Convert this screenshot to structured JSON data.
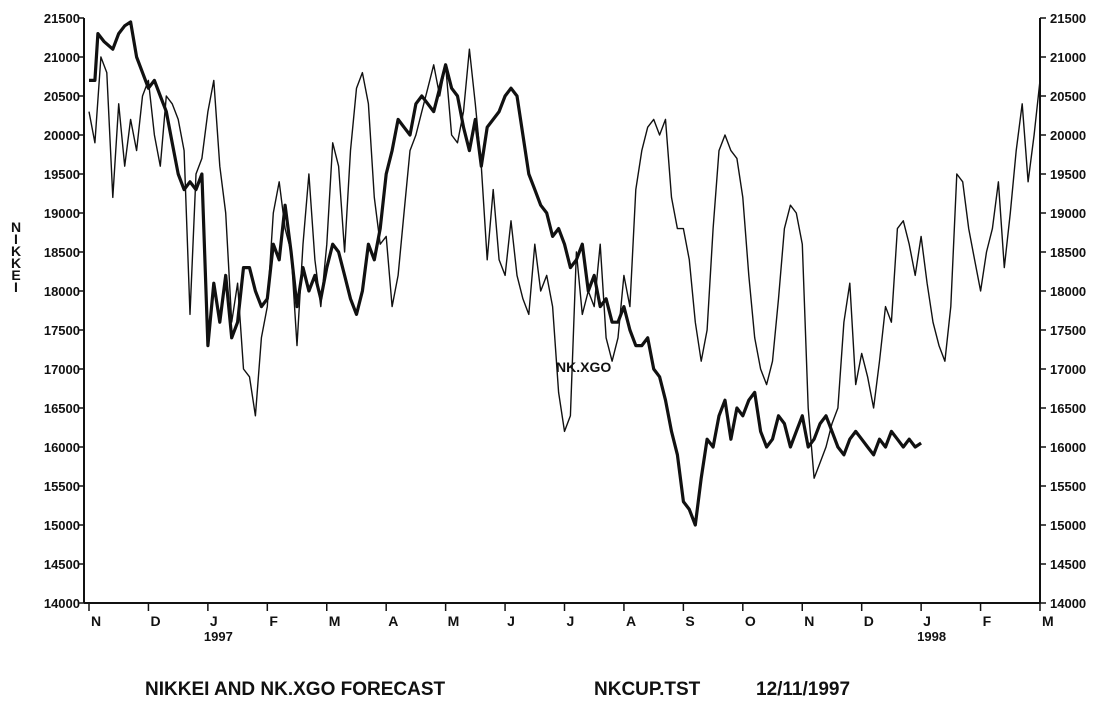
{
  "chart_data": {
    "type": "line",
    "ylabel": "NIKKEI",
    "ylim": [
      14000,
      21500
    ],
    "yticks": [
      "14000",
      "14500",
      "15000",
      "15500",
      "16000",
      "16500",
      "17000",
      "17500",
      "18000",
      "18500",
      "19000",
      "19500",
      "20000",
      "20500",
      "21000",
      "21500"
    ],
    "months": [
      "N",
      "D",
      "J",
      "F",
      "M",
      "A",
      "M",
      "J",
      "J",
      "A",
      "S",
      "O",
      "N",
      "D",
      "J",
      "F",
      "M"
    ],
    "years": [
      {
        "label": "1997",
        "month_index": 2
      },
      {
        "label": "1998",
        "month_index": 14
      }
    ],
    "annotation": "NK.XGO",
    "series": [
      {
        "name": "NIKKEI",
        "style": "thick",
        "x_month": [
          0,
          0.1,
          0.15,
          0.25,
          0.4,
          0.5,
          0.6,
          0.7,
          0.8,
          0.9,
          1,
          1.1,
          1.2,
          1.3,
          1.4,
          1.5,
          1.6,
          1.7,
          1.8,
          1.9,
          2,
          2.1,
          2.2,
          2.3,
          2.4,
          2.5,
          2.6,
          2.7,
          2.8,
          2.9,
          3,
          3.1,
          3.2,
          3.3,
          3.4,
          3.5,
          3.6,
          3.7,
          3.8,
          3.9,
          4,
          4.1,
          4.2,
          4.3,
          4.4,
          4.5,
          4.6,
          4.7,
          4.8,
          4.9,
          5,
          5.1,
          5.2,
          5.3,
          5.4,
          5.5,
          5.6,
          5.7,
          5.8,
          5.9,
          6,
          6.1,
          6.2,
          6.3,
          6.4,
          6.5,
          6.6,
          6.7,
          6.8,
          6.9,
          7,
          7.1,
          7.2,
          7.3,
          7.4,
          7.5,
          7.6,
          7.7,
          7.8,
          7.9,
          8,
          8.1,
          8.2,
          8.3,
          8.4,
          8.5,
          8.6,
          8.7,
          8.8,
          8.9,
          9,
          9.1,
          9.2,
          9.3,
          9.4,
          9.5,
          9.6,
          9.7,
          9.8,
          9.9,
          10,
          10.1,
          10.2,
          10.3,
          10.4,
          10.5,
          10.6,
          10.7,
          10.8,
          10.9,
          11,
          11.1,
          11.2,
          11.3,
          11.4,
          11.5,
          11.6,
          11.7,
          11.8,
          11.9,
          12,
          12.1,
          12.2,
          12.3,
          12.4,
          12.5,
          12.6,
          12.7,
          12.8,
          12.9,
          13,
          13.1,
          13.2,
          13.3,
          13.4,
          13.5,
          13.6,
          13.7,
          13.8,
          13.9,
          14
        ],
        "y": [
          20700,
          20700,
          21300,
          21200,
          21100,
          21300,
          21400,
          21450,
          21000,
          20800,
          20600,
          20700,
          20500,
          20300,
          19900,
          19500,
          19300,
          19400,
          19300,
          19500,
          17300,
          18100,
          17600,
          18200,
          17400,
          17600,
          18300,
          18300,
          18000,
          17800,
          17900,
          18600,
          18400,
          19100,
          18500,
          17800,
          18300,
          18000,
          18200,
          17900,
          18300,
          18600,
          18500,
          18200,
          17900,
          17700,
          18000,
          18600,
          18400,
          18800,
          19500,
          19800,
          20200,
          20100,
          20000,
          20400,
          20500,
          20400,
          20300,
          20600,
          20900,
          20600,
          20500,
          20100,
          19800,
          20200,
          19600,
          20100,
          20200,
          20300,
          20500,
          20600,
          20500,
          20000,
          19500,
          19300,
          19100,
          19000,
          18700,
          18800,
          18600,
          18300,
          18400,
          18600,
          18000,
          18200,
          17800,
          17900,
          17600,
          17600,
          17800,
          17500,
          17300,
          17300,
          17400,
          17000,
          16900,
          16600,
          16200,
          15900,
          15300,
          15200,
          15000,
          15600,
          16100,
          16000,
          16400,
          16600,
          16100,
          16500,
          16400,
          16600,
          16700,
          16200,
          16000,
          16100,
          16400,
          16300,
          16000,
          16200,
          16400,
          16000,
          16100,
          16300,
          16400,
          16200,
          16000,
          15900,
          16100,
          16200,
          16100,
          16000,
          15900,
          16100,
          16000,
          16200,
          16100,
          16000,
          16100,
          16000,
          16050
        ]
      },
      {
        "name": "NK.XGO",
        "style": "thin",
        "x_month": [
          0,
          0.1,
          0.2,
          0.3,
          0.4,
          0.5,
          0.6,
          0.7,
          0.8,
          0.9,
          1,
          1.1,
          1.2,
          1.3,
          1.4,
          1.5,
          1.6,
          1.7,
          1.8,
          1.9,
          2,
          2.1,
          2.2,
          2.3,
          2.4,
          2.5,
          2.6,
          2.7,
          2.8,
          2.9,
          3,
          3.1,
          3.2,
          3.3,
          3.4,
          3.5,
          3.6,
          3.7,
          3.8,
          3.9,
          4,
          4.1,
          4.2,
          4.3,
          4.4,
          4.5,
          4.6,
          4.7,
          4.8,
          4.9,
          5,
          5.1,
          5.2,
          5.3,
          5.4,
          5.5,
          5.6,
          5.7,
          5.8,
          5.9,
          6,
          6.1,
          6.2,
          6.3,
          6.4,
          6.5,
          6.6,
          6.7,
          6.8,
          6.9,
          7,
          7.1,
          7.2,
          7.3,
          7.4,
          7.5,
          7.6,
          7.7,
          7.8,
          7.9,
          8,
          8.1,
          8.2,
          8.3,
          8.4,
          8.5,
          8.6,
          8.7,
          8.8,
          8.9,
          9,
          9.1,
          9.2,
          9.3,
          9.4,
          9.5,
          9.6,
          9.7,
          9.8,
          9.9,
          10,
          10.1,
          10.2,
          10.3,
          10.4,
          10.5,
          10.6,
          10.7,
          10.8,
          10.9,
          11,
          11.1,
          11.2,
          11.3,
          11.4,
          11.5,
          11.6,
          11.7,
          11.8,
          11.9,
          12,
          12.1,
          12.2,
          12.3,
          12.4,
          12.5,
          12.6,
          12.7,
          12.8,
          12.9,
          13,
          13.1,
          13.2,
          13.3,
          13.4,
          13.5,
          13.6,
          13.7,
          13.8,
          13.9,
          14,
          14.1,
          14.2,
          14.3,
          14.4,
          14.5,
          14.6,
          14.7,
          14.8,
          14.9,
          15,
          15.1,
          15.2,
          15.3,
          15.4,
          15.5,
          15.6,
          15.7,
          15.8,
          15.9,
          16
        ],
        "y": [
          20300,
          19900,
          21000,
          20800,
          19200,
          20400,
          19600,
          20200,
          19800,
          20500,
          20700,
          20000,
          19600,
          20500,
          20400,
          20200,
          19800,
          17700,
          19500,
          19700,
          20300,
          20700,
          19600,
          19000,
          17600,
          18100,
          17000,
          16900,
          16400,
          17400,
          17800,
          19000,
          19400,
          18800,
          18500,
          17300,
          18600,
          19500,
          18400,
          17800,
          18600,
          19900,
          19600,
          18500,
          19800,
          20600,
          20800,
          20400,
          19200,
          18600,
          18700,
          17800,
          18200,
          19000,
          19800,
          20000,
          20300,
          20600,
          20900,
          20500,
          20900,
          20000,
          19900,
          20300,
          21100,
          20400,
          19600,
          18400,
          19300,
          18400,
          18200,
          18900,
          18200,
          17900,
          17700,
          18600,
          18000,
          18200,
          17800,
          16700,
          16200,
          16400,
          18500,
          17700,
          18000,
          17800,
          18600,
          17400,
          17100,
          17400,
          18200,
          17800,
          19300,
          19800,
          20100,
          20200,
          20000,
          20200,
          19200,
          18800,
          18800,
          18400,
          17600,
          17100,
          17500,
          18800,
          19800,
          20000,
          19800,
          19700,
          19200,
          18200,
          17400,
          17000,
          16800,
          17100,
          17900,
          18800,
          19100,
          19000,
          18600,
          16500,
          15600,
          15800,
          16000,
          16300,
          16500,
          17600,
          18100,
          16800,
          17200,
          16900,
          16500,
          17100,
          17800,
          17600,
          18800,
          18900,
          18600,
          18200,
          18700,
          18100,
          17600,
          17300,
          17100,
          17800,
          19500,
          19400,
          18800,
          18400,
          18000,
          18500,
          18800,
          19400,
          18300,
          19000,
          19800,
          20400,
          19400,
          20000,
          20700
        ]
      }
    ]
  },
  "footer": {
    "title": "NIKKEI AND NK.XGO FORECAST",
    "file": "NKCUP.TST",
    "date": "12/11/1997"
  }
}
